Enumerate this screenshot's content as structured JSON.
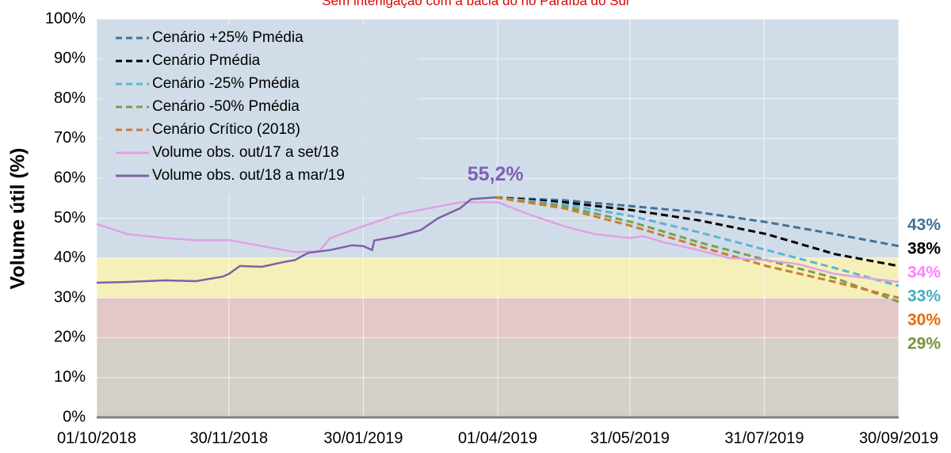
{
  "chart_data": {
    "type": "line",
    "title": "Sem interligação com a bacia do rio Paraíba do Sul",
    "y_label": "Volume útil (%)",
    "ylim": [
      0,
      100
    ],
    "yticks": [
      {
        "value": 0,
        "label": "0%"
      },
      {
        "value": 10,
        "label": "10%"
      },
      {
        "value": 20,
        "label": "20%"
      },
      {
        "value": 30,
        "label": "30%"
      },
      {
        "value": 40,
        "label": "40%"
      },
      {
        "value": 50,
        "label": "50%"
      },
      {
        "value": 60,
        "label": "60%"
      },
      {
        "value": 70,
        "label": "70%"
      },
      {
        "value": 80,
        "label": "80%"
      },
      {
        "value": 90,
        "label": "90%"
      },
      {
        "value": 100,
        "label": "100%"
      }
    ],
    "xlim": [
      "01/10/2018",
      "30/09/2019"
    ],
    "xticks": [
      "01/10/2018",
      "30/11/2018",
      "30/01/2019",
      "01/04/2019",
      "31/05/2019",
      "31/07/2019",
      "30/09/2019"
    ],
    "grid": true,
    "bands": [
      {
        "from": 0,
        "to": 20,
        "color": "#d4d0c8"
      },
      {
        "from": 20,
        "to": 30,
        "color": "#e4c8c8"
      },
      {
        "from": 30,
        "to": 40,
        "color": "#f4f0b8"
      },
      {
        "from": 40,
        "to": 100,
        "color": "#d0dde8"
      }
    ],
    "legend": "top-left",
    "series": [
      {
        "name": "Cenário +25% Pmédia",
        "color": "#41719c",
        "label_color": "#41709c",
        "dashed": true,
        "x": [
          "31/03/2019",
          "01/05/2019",
          "01/06/2019",
          "01/07/2019",
          "01/08/2019",
          "01/09/2019",
          "30/09/2019"
        ],
        "values": [
          55.2,
          54.5,
          53,
          51.5,
          49,
          46,
          43
        ],
        "end_label": "43%"
      },
      {
        "name": "Cenário Pmédia",
        "color": "#000000",
        "label_color": "#000000",
        "dashed": true,
        "x": [
          "31/03/2019",
          "01/05/2019",
          "01/06/2019",
          "01/07/2019",
          "01/08/2019",
          "01/09/2019",
          "30/09/2019"
        ],
        "values": [
          55.2,
          54,
          52,
          49.5,
          46,
          41,
          38
        ],
        "end_label": "38%"
      },
      {
        "name": "Cenário -25% Pmédia",
        "color": "#5bb5d5",
        "label_color": "#4bacc6",
        "dashed": true,
        "x": [
          "31/03/2019",
          "01/05/2019",
          "01/06/2019",
          "01/07/2019",
          "01/08/2019",
          "01/09/2019",
          "30/09/2019"
        ],
        "values": [
          55.2,
          53.5,
          50.5,
          46.5,
          42,
          37.5,
          33
        ],
        "end_label": "33%"
      },
      {
        "name": "Cenário -50% Pmédia",
        "color": "#77a050",
        "label_color": "#77933c",
        "dashed": true,
        "x": [
          "31/03/2019",
          "01/05/2019",
          "01/06/2019",
          "01/07/2019",
          "01/08/2019",
          "01/09/2019",
          "30/09/2019"
        ],
        "values": [
          55.2,
          53,
          49,
          44,
          39.5,
          35,
          29
        ],
        "end_label": "29%"
      },
      {
        "name": "Cenário Crítico (2018)",
        "color": "#d07a30",
        "label_color": "#e46c0a",
        "dashed": true,
        "x": [
          "31/03/2019",
          "01/05/2019",
          "01/06/2019",
          "01/07/2019",
          "01/08/2019",
          "01/09/2019",
          "30/09/2019"
        ],
        "values": [
          55.2,
          52.5,
          48,
          43,
          38,
          34,
          30
        ],
        "end_label": "30%"
      },
      {
        "name": "Volume obs. out/17 a set/18",
        "color": "#e0a0e8",
        "label_color": "#ff80ff",
        "dashed": false,
        "x": [
          "01/10/2018",
          "15/10/2018",
          "01/11/2018",
          "15/11/2018",
          "30/11/2018",
          "15/12/2018",
          "30/12/2018",
          "10/01/2019",
          "15/01/2019",
          "30/01/2019",
          "15/02/2019",
          "01/03/2019",
          "15/03/2019",
          "01/04/2019",
          "15/04/2019",
          "01/05/2019",
          "15/05/2019",
          "31/05/2019",
          "06/06/2019",
          "15/06/2019",
          "01/07/2019",
          "15/07/2019",
          "31/07/2019",
          "15/08/2019",
          "01/09/2019",
          "15/09/2019",
          "30/09/2019"
        ],
        "values": [
          48.5,
          46,
          45,
          44.5,
          44.5,
          43,
          41.5,
          41.7,
          45,
          48,
          51,
          52.5,
          54,
          54,
          51,
          48,
          46,
          45,
          45.5,
          44,
          42,
          40,
          39.5,
          38.5,
          36,
          35,
          34
        ],
        "end_label": "34%"
      },
      {
        "name": "Volume obs. out/18 a mar/19",
        "color": "#7f5fa8",
        "label_color": "#7f5fb8",
        "dashed": false,
        "x": [
          "01/10/2018",
          "15/10/2018",
          "01/11/2018",
          "15/11/2018",
          "27/11/2018",
          "30/11/2018",
          "05/12/2018",
          "15/12/2018",
          "25/12/2018",
          "30/12/2018",
          "05/01/2019",
          "15/01/2019",
          "25/01/2019",
          "30/01/2019",
          "03/02/2019",
          "04/02/2019",
          "15/02/2019",
          "25/02/2019",
          "05/03/2019",
          "15/03/2019",
          "20/03/2019",
          "31/03/2019"
        ],
        "values": [
          33.8,
          34,
          34.4,
          34.2,
          35.3,
          36,
          38,
          37.8,
          39,
          39.5,
          41.3,
          42,
          43.2,
          43,
          42,
          44.4,
          45.5,
          47,
          50,
          52.5,
          54.8,
          55.2
        ],
        "end_label": "55,2%"
      }
    ]
  }
}
